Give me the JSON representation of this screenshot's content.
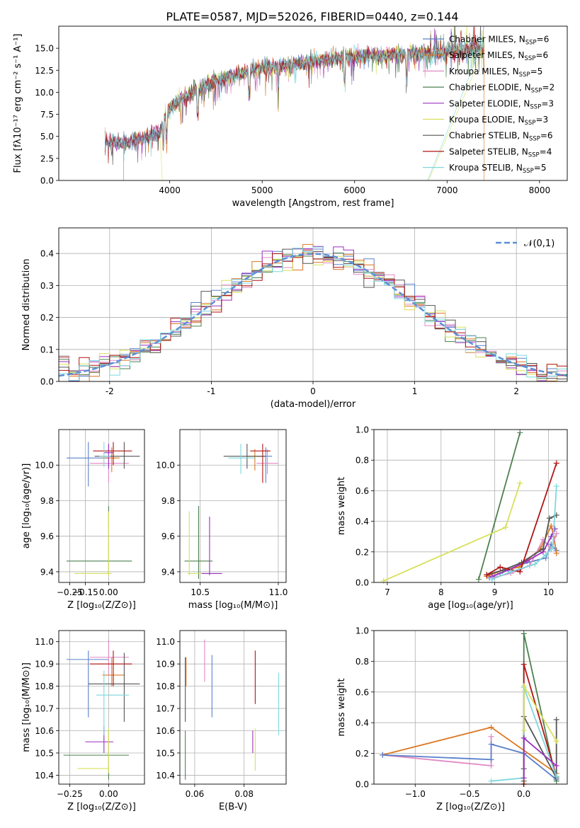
{
  "figure_title": "PLATE=0587, MJD=52026, FIBERID=0440, z=0.144",
  "colors": {
    "blue": "#5b80c9",
    "orange": "#dd7722",
    "pink": "#e08ac4",
    "green": "#4e8050",
    "purple": "#9b2fbf",
    "yellow": "#d8e05a",
    "gray": "#555555",
    "red": "#b01515",
    "cyan": "#7dd8dc"
  },
  "chart_data": [
    {
      "id": "spectrum",
      "type": "line",
      "xlabel": "wavelength [Angstrom, rest frame]",
      "ylabel": "Flux [fλ10⁻¹⁷ erg cm⁻² s⁻¹ A⁻¹]",
      "xlim": [
        2800,
        8300
      ],
      "ylim": [
        0,
        17.5
      ],
      "xticks": [
        4000,
        5000,
        6000,
        7000,
        8000
      ],
      "yticks": [
        0.0,
        2.5,
        5.0,
        7.5,
        10.0,
        12.5,
        15.0
      ],
      "continuum": [
        [
          3300,
          4.4
        ],
        [
          3500,
          4.2
        ],
        [
          3700,
          4.8
        ],
        [
          3900,
          5.4
        ],
        [
          3950,
          7.5
        ],
        [
          4050,
          8.6
        ],
        [
          4200,
          9.8
        ],
        [
          4400,
          10.8
        ],
        [
          4600,
          11.6
        ],
        [
          4800,
          12.2
        ],
        [
          5000,
          12.8
        ],
        [
          5200,
          13.0
        ],
        [
          5500,
          13.4
        ],
        [
          5800,
          13.9
        ],
        [
          6000,
          14.1
        ],
        [
          6300,
          14.2
        ],
        [
          6600,
          14.4
        ],
        [
          6900,
          14.5
        ],
        [
          7200,
          14.8
        ],
        [
          7400,
          15.0
        ]
      ],
      "legend": [
        "Chabrier MILES, N_SSP=6",
        "Salpeter MILES, N_SSP=6",
        "Kroupa MILES, N_SSP=5",
        "Chabrier ELODIE, N_SSP=2",
        "Salpeter ELODIE, N_SSP=3",
        "Kroupa ELODIE, N_SSP=3",
        "Chabrier STELIB, N_SSP=6",
        "Salpeter STELIB, N_SSP=4",
        "Kroupa STELIB, N_SSP=5"
      ],
      "legend_display": [
        {
          "main": "Chabrier MILES, N",
          "sub": "SSP",
          "tail": "=6"
        },
        {
          "main": "Salpeter MILES, N",
          "sub": "SSP",
          "tail": "=6"
        },
        {
          "main": "Kroupa MILES, N",
          "sub": "SSP",
          "tail": "=5"
        },
        {
          "main": "Chabrier ELODIE, N",
          "sub": "SSP",
          "tail": "=2"
        },
        {
          "main": "Salpeter ELODIE, N",
          "sub": "SSP",
          "tail": "=3"
        },
        {
          "main": "Kroupa ELODIE, N",
          "sub": "SSP",
          "tail": "=3"
        },
        {
          "main": "Chabrier STELIB, N",
          "sub": "SSP",
          "tail": "=6"
        },
        {
          "main": "Salpeter STELIB, N",
          "sub": "SSP",
          "tail": "=4"
        },
        {
          "main": "Kroupa STELIB, N",
          "sub": "SSP",
          "tail": "=5"
        }
      ],
      "series_colors": [
        "blue",
        "orange",
        "pink",
        "green",
        "purple",
        "yellow",
        "gray",
        "red",
        "cyan"
      ],
      "legend_position": "upper right"
    },
    {
      "id": "residuals",
      "type": "bar",
      "xlabel": "(data-model)/error",
      "ylabel": "Normed distribution",
      "xlim": [
        -2.5,
        2.5
      ],
      "ylim": [
        0,
        0.48
      ],
      "xticks": [
        -2,
        -1,
        0,
        1,
        2
      ],
      "yticks": [
        0.0,
        0.1,
        0.2,
        0.3,
        0.4
      ],
      "grid": true,
      "legend": [
        "𝒩(0,1)"
      ],
      "legend_position": "upper right",
      "reference_curve": "normal(0,1)",
      "bin_width": 0.1
    },
    {
      "id": "z-age",
      "type": "scatter",
      "xlabel": "Z [log₁₀(Z/Z⊙)]",
      "ylabel": "age  [log₁₀(age/yr)]",
      "xlim": [
        -0.32,
        0.23
      ],
      "ylim": [
        9.34,
        10.2
      ],
      "xticks": [
        -0.25,
        -0.15,
        0.0
      ],
      "xticklabels": [
        "−0.25",
        "−0.15",
        "0.00"
      ],
      "yticks": [
        9.4,
        9.6,
        9.8,
        10.0
      ],
      "grid": true,
      "points": [
        {
          "c": "blue",
          "x": -0.13,
          "y": 10.04,
          "ex": [
            -0.27,
            0.0
          ],
          "ey": [
            9.88,
            10.13
          ]
        },
        {
          "c": "orange",
          "x": 0.02,
          "y": 10.04,
          "ex": [
            -0.04,
            0.07
          ],
          "ey": [
            9.96,
            10.1
          ]
        },
        {
          "c": "pink",
          "x": 0.0,
          "y": 10.01,
          "ex": [
            -0.12,
            0.13
          ],
          "ey": [
            9.9,
            10.12
          ]
        },
        {
          "c": "green",
          "x": 0.0,
          "y": 9.46,
          "ex": [
            -0.27,
            0.15
          ],
          "ey": [
            9.38,
            9.77
          ]
        },
        {
          "c": "purple",
          "x": 0.0,
          "y": 10.07,
          "ex": [
            -0.03,
            0.03
          ],
          "ey": [
            9.98,
            10.12
          ]
        },
        {
          "c": "yellow",
          "x": 0.0,
          "y": 9.39,
          "ex": [
            -0.22,
            0.02
          ],
          "ey": [
            9.38,
            9.74
          ]
        },
        {
          "c": "gray",
          "x": 0.1,
          "y": 10.05,
          "ex": [
            -0.09,
            0.2
          ],
          "ey": [
            9.98,
            10.13
          ]
        },
        {
          "c": "red",
          "x": 0.03,
          "y": 10.08,
          "ex": [
            -0.1,
            0.15
          ],
          "ey": [
            10.0,
            10.13
          ]
        },
        {
          "c": "cyan",
          "x": -0.03,
          "y": 10.05,
          "ex": [
            -0.06,
            0.01
          ],
          "ey": [
            9.99,
            10.13
          ]
        }
      ]
    },
    {
      "id": "mass-age",
      "type": "scatter",
      "xlabel": "mass [log₁₀(M/M⊙)]",
      "ylabel": "",
      "xlim": [
        10.37,
        11.05
      ],
      "ylim": [
        9.34,
        10.2
      ],
      "xticks": [
        10.5,
        11.0
      ],
      "xticklabels": [
        "10.5",
        "11.0"
      ],
      "yticks": [
        9.4,
        9.6,
        9.8,
        10.0
      ],
      "grid": true,
      "points": [
        {
          "c": "blue",
          "x": 10.92,
          "y": 10.05,
          "ex": [
            10.86,
            10.96
          ],
          "ey": [
            9.9,
            10.1
          ]
        },
        {
          "c": "orange",
          "x": 10.85,
          "y": 10.05,
          "ex": [
            10.8,
            10.9
          ],
          "ey": [
            9.97,
            10.09
          ]
        },
        {
          "c": "pink",
          "x": 10.93,
          "y": 10.01,
          "ex": [
            10.86,
            11.0
          ],
          "ey": [
            9.95,
            10.09
          ]
        },
        {
          "c": "green",
          "x": 10.49,
          "y": 9.46,
          "ex": [
            10.4,
            10.58
          ],
          "ey": [
            9.36,
            9.77
          ]
        },
        {
          "c": "purple",
          "x": 10.56,
          "y": 9.39,
          "ex": [
            10.5,
            10.64
          ],
          "ey": [
            9.38,
            9.71
          ]
        },
        {
          "c": "yellow",
          "x": 10.43,
          "y": 9.39,
          "ex": [
            10.42,
            10.51
          ],
          "ey": [
            9.38,
            9.74
          ]
        },
        {
          "c": "gray",
          "x": 10.8,
          "y": 10.05,
          "ex": [
            10.65,
            10.92
          ],
          "ey": [
            9.98,
            10.12
          ]
        },
        {
          "c": "red",
          "x": 10.9,
          "y": 10.08,
          "ex": [
            10.82,
            10.95
          ],
          "ey": [
            9.9,
            10.12
          ]
        },
        {
          "c": "cyan",
          "x": 10.76,
          "y": 10.04,
          "ex": [
            10.68,
            10.85
          ],
          "ey": [
            9.95,
            10.12
          ]
        }
      ]
    },
    {
      "id": "age-weight",
      "type": "line",
      "xlabel": "age  [log₁₀(age/yr)]",
      "ylabel": "mass weight",
      "xlim": [
        6.75,
        10.35
      ],
      "ylim": [
        0,
        1.0
      ],
      "xticks": [
        7,
        8,
        9,
        10
      ],
      "yticks": [
        0.0,
        0.2,
        0.4,
        0.6,
        0.8,
        1.0
      ],
      "grid": true,
      "series": [
        {
          "c": "green",
          "x": [
            8.7,
            9.47
          ],
          "y": [
            0.02,
            0.98
          ]
        },
        {
          "c": "yellow",
          "x": [
            6.93,
            9.2,
            9.47
          ],
          "y": [
            0.01,
            0.36,
            0.65
          ]
        },
        {
          "c": "blue",
          "x": [
            8.9,
            9.1,
            9.5,
            9.95,
            10.05,
            10.15
          ],
          "y": [
            0.03,
            0.06,
            0.12,
            0.16,
            0.25,
            0.21
          ]
        },
        {
          "c": "orange",
          "x": [
            8.85,
            9.15,
            9.45,
            9.85,
            10.05,
            10.1,
            10.15
          ],
          "y": [
            0.04,
            0.08,
            0.1,
            0.22,
            0.37,
            0.3,
            0.19
          ]
        },
        {
          "c": "pink",
          "x": [
            8.95,
            9.3,
            9.65,
            9.9,
            10.05,
            10.15
          ],
          "y": [
            0.03,
            0.06,
            0.11,
            0.28,
            0.22,
            0.32
          ]
        },
        {
          "c": "purple",
          "x": [
            8.95,
            9.25,
            9.6,
            9.9,
            10.05,
            10.12
          ],
          "y": [
            0.04,
            0.08,
            0.14,
            0.2,
            0.3,
            0.35
          ]
        },
        {
          "c": "gray",
          "x": [
            8.85,
            9.15,
            9.5,
            9.9,
            10.02,
            10.15
          ],
          "y": [
            0.05,
            0.08,
            0.13,
            0.22,
            0.42,
            0.44
          ]
        },
        {
          "c": "red",
          "x": [
            8.85,
            9.1,
            9.47,
            10.15
          ],
          "y": [
            0.05,
            0.1,
            0.07,
            0.78
          ]
        },
        {
          "c": "cyan",
          "x": [
            8.95,
            9.3,
            9.75,
            9.95,
            10.08,
            10.15
          ],
          "y": [
            0.02,
            0.07,
            0.12,
            0.18,
            0.23,
            0.63
          ]
        }
      ]
    },
    {
      "id": "z-mass",
      "type": "scatter",
      "xlabel": "Z [log₁₀(Z/Z⊙)]",
      "ylabel": "mass [log₁₀(M/M⊙)]",
      "xlim": [
        -0.32,
        0.23
      ],
      "ylim": [
        10.36,
        11.05
      ],
      "xticks": [
        -0.25,
        0.0
      ],
      "xticklabels": [
        "−0.25",
        "0.00"
      ],
      "yticks": [
        10.4,
        10.5,
        10.6,
        10.7,
        10.8,
        10.9,
        11.0
      ],
      "grid": true,
      "points": [
        {
          "c": "blue",
          "x": -0.13,
          "y": 10.92,
          "ex": [
            -0.27,
            0.0
          ],
          "ey": [
            10.66,
            10.96
          ]
        },
        {
          "c": "orange",
          "x": 0.02,
          "y": 10.85,
          "ex": [
            -0.04,
            0.1
          ],
          "ey": [
            10.8,
            10.93
          ]
        },
        {
          "c": "pink",
          "x": 0.0,
          "y": 10.93,
          "ex": [
            -0.12,
            0.13
          ],
          "ey": [
            10.85,
            11.01
          ]
        },
        {
          "c": "green",
          "x": 0.0,
          "y": 10.49,
          "ex": [
            -0.29,
            0.13
          ],
          "ey": [
            10.38,
            10.6
          ]
        },
        {
          "c": "purple",
          "x": -0.03,
          "y": 10.55,
          "ex": [
            -0.15,
            0.03
          ],
          "ey": [
            10.5,
            10.62
          ]
        },
        {
          "c": "yellow",
          "x": 0.0,
          "y": 10.43,
          "ex": [
            -0.2,
            0.0
          ],
          "ey": [
            10.41,
            10.61
          ]
        },
        {
          "c": "gray",
          "x": 0.1,
          "y": 10.81,
          "ex": [
            -0.13,
            0.2
          ],
          "ey": [
            10.64,
            10.95
          ]
        },
        {
          "c": "red",
          "x": 0.03,
          "y": 10.9,
          "ex": [
            -0.12,
            0.15
          ],
          "ey": [
            10.8,
            10.96
          ]
        },
        {
          "c": "cyan",
          "x": -0.03,
          "y": 10.76,
          "ex": [
            -0.08,
            0.13
          ],
          "ey": [
            10.58,
            10.87
          ]
        }
      ]
    },
    {
      "id": "ebv-mass",
      "type": "scatter",
      "xlabel": "E(B-V)",
      "ylabel": "",
      "xlim": [
        0.054,
        0.097
      ],
      "ylim": [
        10.36,
        11.05
      ],
      "xticks": [
        0.06,
        0.08
      ],
      "xticklabels": [
        "0.06",
        "0.08"
      ],
      "yticks": [
        10.4,
        10.5,
        10.6,
        10.7,
        10.8,
        10.9,
        11.0
      ],
      "grid": true,
      "points": [
        {
          "c": "blue",
          "x": 0.067,
          "y": 10.8,
          "ey": [
            10.66,
            10.94
          ]
        },
        {
          "c": "orange",
          "x": 0.0565,
          "y": 10.86,
          "ey": [
            10.8,
            10.93
          ]
        },
        {
          "c": "pink",
          "x": 0.064,
          "y": 10.93,
          "ey": [
            10.82,
            11.01
          ]
        },
        {
          "c": "green",
          "x": 0.0562,
          "y": 10.49,
          "ey": [
            10.38,
            10.6
          ]
        },
        {
          "c": "purple",
          "x": 0.0835,
          "y": 10.55,
          "ey": [
            10.5,
            10.6
          ]
        },
        {
          "c": "yellow",
          "x": 0.0845,
          "y": 10.5,
          "ey": [
            10.42,
            10.61
          ]
        },
        {
          "c": "gray",
          "x": 0.0562,
          "y": 10.8,
          "ey": [
            10.64,
            10.93
          ]
        },
        {
          "c": "red",
          "x": 0.0845,
          "y": 10.85,
          "ey": [
            10.72,
            10.96
          ]
        },
        {
          "c": "cyan",
          "x": 0.094,
          "y": 10.76,
          "ey": [
            10.58,
            10.86
          ]
        }
      ]
    },
    {
      "id": "z-weight",
      "type": "line",
      "xlabel": "Z [log₁₀(Z/Z⊙)]",
      "ylabel": "mass weight",
      "xlim": [
        -1.38,
        0.4
      ],
      "ylim": [
        0,
        1.0
      ],
      "xticks": [
        -1.0,
        -0.5,
        0.0
      ],
      "xticklabels": [
        "−1.0",
        "−0.5",
        "0.0"
      ],
      "yticks": [
        0.0,
        0.2,
        0.4,
        0.6,
        0.8,
        1.0
      ],
      "grid": true,
      "series": [
        {
          "c": "orange",
          "x": [
            -1.3,
            -0.3,
            0.3
          ],
          "y": [
            0.19,
            0.37,
            0.07
          ]
        },
        {
          "c": "pink",
          "x": [
            -1.3,
            -0.3,
            -0.3
          ],
          "y": [
            0.19,
            0.12,
            0.31
          ]
        },
        {
          "c": "blue",
          "x": [
            -1.3,
            -0.3,
            -0.3,
            0.0,
            0.3
          ],
          "y": [
            0.19,
            0.16,
            0.26,
            0.2,
            0.03
          ]
        },
        {
          "c": "green",
          "x": [
            0.0,
            0.0,
            0.3
          ],
          "y": [
            0.02,
            0.98,
            0.02
          ]
        },
        {
          "c": "gray",
          "x": [
            0.0,
            0.0,
            0.3,
            0.3
          ],
          "y": [
            0.1,
            0.44,
            0.04,
            0.42
          ]
        },
        {
          "c": "red",
          "x": [
            0.0,
            0.0,
            0.3
          ],
          "y": [
            0.0,
            0.78,
            0.05
          ]
        },
        {
          "c": "cyan",
          "x": [
            -0.3,
            0.0,
            0.0,
            0.3
          ],
          "y": [
            0.02,
            0.04,
            0.63,
            0.05
          ]
        },
        {
          "c": "yellow",
          "x": [
            0.0,
            0.0,
            0.3
          ],
          "y": [
            0.35,
            0.64,
            0.28
          ]
        },
        {
          "c": "purple",
          "x": [
            0.0,
            0.0,
            0.3
          ],
          "y": [
            0.04,
            0.3,
            0.12
          ]
        }
      ]
    }
  ]
}
